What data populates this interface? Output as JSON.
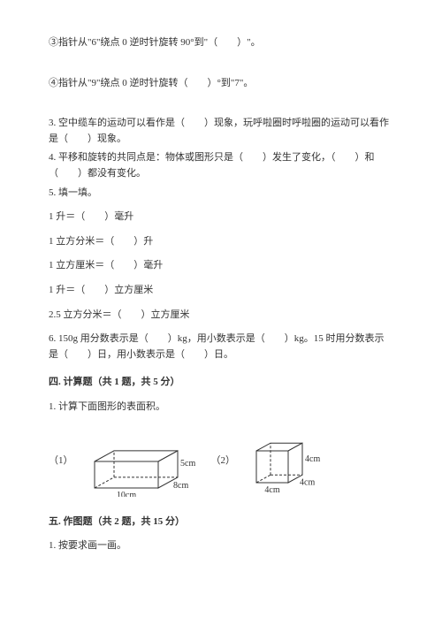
{
  "q_circled3": "③指针从\"6\"绕点 0 逆时针旋转 90°到\"（　　）\"。",
  "q_circled4": "④指针从\"9\"绕点 0 逆时针旋转（　　）°到\"7\"。",
  "q3": "3. 空中缆车的运动可以看作是（　　）现象，玩呼啦圈时呼啦圈的运动可以看作是（　　）现象。",
  "q4": "4. 平移和旋转的共同点是：物体或图形只是（　　）发生了变化，（　　）和（　　）都没有变化。",
  "q5": "5. 填一填。",
  "q5_1": "1 升＝（　　）毫升",
  "q5_2": "1 立方分米＝（　　）升",
  "q5_3": "1 立方厘米＝（　　）毫升",
  "q5_4": "1 升＝（　　）立方厘米",
  "q5_5": "2.5 立方分米＝（　　）立方厘米",
  "q6": "6. 150g 用分数表示是（　　）kg，用小数表示是（　　）kg。15 时用分数表示是（　　）日，用小数表示是（　　）日。",
  "section4": "四. 计算题（共 1 题，共 5 分）",
  "section4_q1": "1. 计算下面图形的表面积。",
  "fig1_label": "（1）",
  "fig2_label": "（2）",
  "cuboid": {
    "w": 100,
    "h": 62,
    "dim_l": "10cm",
    "dim_w": "8cm",
    "dim_h": "5cm",
    "stroke": "#333333",
    "fill": "#ffffff",
    "text_color": "#333333",
    "font_size": 10,
    "dash": "3,2"
  },
  "cube": {
    "size": 62,
    "dim": "4cm",
    "stroke": "#333333",
    "fill": "#ffffff",
    "text_color": "#333333",
    "font_size": 10,
    "dash": "3,2"
  },
  "section5": "五. 作图题（共 2 题，共 15 分）",
  "section5_q1": "1. 按要求画一画。"
}
